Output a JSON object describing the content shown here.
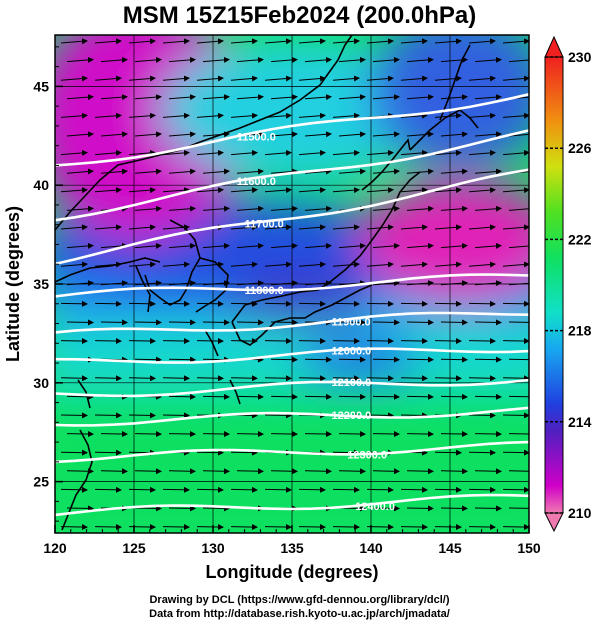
{
  "title": "MSM 15Z15Feb2024 (200.0hPa)",
  "credits": {
    "line1": "Drawing by DCL (https://www.gfd-dennou.org/library/dcl/)",
    "line2": "Data from http://database.rish.kyoto-u.ac.jp/arch/jmadata/"
  },
  "chart_data": {
    "type": "heatmap",
    "xlabel": "Longitude (degrees)",
    "ylabel": "Latitude  (degrees)",
    "xlim": [
      120,
      150
    ],
    "ylim": [
      22.4,
      47.6
    ],
    "x_ticks": [
      "120",
      "125",
      "130",
      "135",
      "140",
      "145",
      "150"
    ],
    "y_ticks": [
      "25",
      "30",
      "35",
      "40",
      "45"
    ],
    "colorbar": {
      "min": 210,
      "max": 230,
      "tick_labels": [
        "230",
        "226",
        "222",
        "218",
        "214",
        "210"
      ],
      "colors": [
        "#f07ab0",
        "#d000c8",
        "#3040d8",
        "#18d0e8",
        "#10e060",
        "#70e020",
        "#d8e010",
        "#f08010",
        "#f02020"
      ]
    },
    "contours": [
      {
        "label": "11500.0",
        "value": 11500,
        "lat_left": 41.0,
        "lat_right": 44.6,
        "label_lon": 131.5
      },
      {
        "label": "11600.0",
        "value": 11600,
        "lat_left": 38.4,
        "lat_right": 42.6,
        "label_lon": 131.5
      },
      {
        "label": "11700.0",
        "value": 11700,
        "lat_left": 36.2,
        "lat_right": 40.6,
        "label_lon": 132.0
      },
      {
        "label": "11800.0",
        "value": 11800,
        "lat_left": 34.4,
        "lat_right": 35.4,
        "label_lon": 132.0
      },
      {
        "label": "11900.0",
        "value": 11900,
        "lat_left": 32.4,
        "lat_right": 33.6,
        "label_lon": 137.5
      },
      {
        "label": "12000.0",
        "value": 12000,
        "lat_left": 31.0,
        "lat_right": 31.8,
        "label_lon": 137.5
      },
      {
        "label": "12100.0",
        "value": 12100,
        "lat_left": 29.4,
        "lat_right": 30.2,
        "label_lon": 137.5
      },
      {
        "label": "12200.0",
        "value": 12200,
        "lat_left": 28.0,
        "lat_right": 28.6,
        "label_lon": 137.5
      },
      {
        "label": "12300.0",
        "value": 12300,
        "lat_left": 26.2,
        "lat_right": 26.8,
        "label_lon": 138.5
      },
      {
        "label": "12400.0",
        "value": 12400,
        "lat_left": 23.4,
        "lat_right": 24.2,
        "label_lon": 139.0
      }
    ],
    "wind_vectors": "uniform westerly arrows",
    "grid": true
  }
}
